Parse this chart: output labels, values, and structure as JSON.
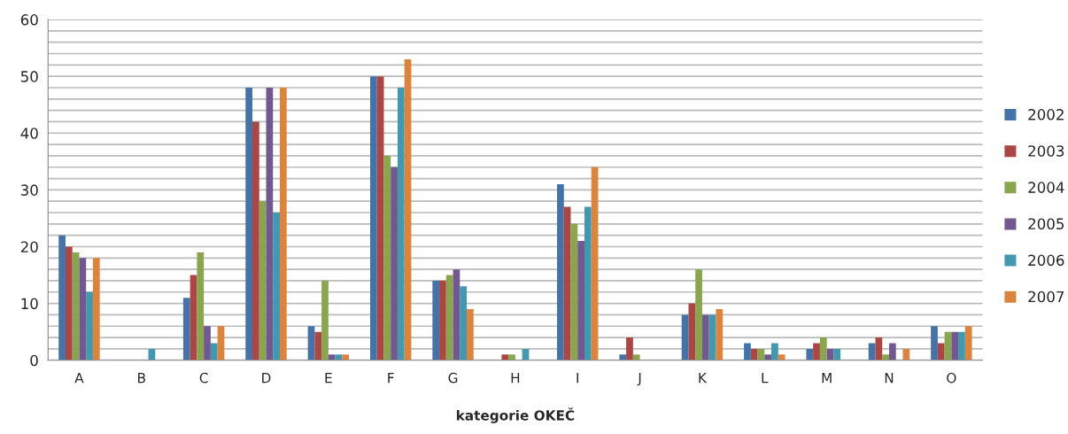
{
  "chart_data": {
    "type": "bar",
    "xlabel": "kategorie OKEČ",
    "categories": [
      "A",
      "B",
      "C",
      "D",
      "E",
      "F",
      "G",
      "H",
      "I",
      "J",
      "K",
      "L",
      "M",
      "N",
      "O"
    ],
    "series": [
      {
        "name": "2002",
        "color": "#4572a7",
        "values": [
          22,
          0,
          11,
          48,
          6,
          50,
          14,
          0,
          31,
          1,
          8,
          3,
          2,
          3,
          6
        ]
      },
      {
        "name": "2003",
        "color": "#aa4643",
        "values": [
          20,
          0,
          15,
          42,
          5,
          50,
          14,
          1,
          27,
          4,
          10,
          2,
          3,
          4,
          3
        ]
      },
      {
        "name": "2004",
        "color": "#89a54e",
        "values": [
          19,
          0,
          19,
          28,
          14,
          36,
          15,
          1,
          24,
          1,
          16,
          2,
          4,
          1,
          5
        ]
      },
      {
        "name": "2005",
        "color": "#71588f",
        "values": [
          18,
          0,
          6,
          48,
          1,
          34,
          16,
          0,
          21,
          0,
          8,
          1,
          2,
          3,
          5
        ]
      },
      {
        "name": "2006",
        "color": "#4198af",
        "values": [
          12,
          2,
          3,
          26,
          1,
          48,
          13,
          2,
          27,
          0,
          8,
          3,
          2,
          0,
          5
        ]
      },
      {
        "name": "2007",
        "color": "#db843d",
        "values": [
          18,
          0,
          6,
          48,
          1,
          53,
          9,
          0,
          34,
          0,
          9,
          1,
          0,
          2,
          6
        ]
      }
    ],
    "ylim": [
      0,
      60
    ],
    "yticks": [
      0,
      {
        "value": 2,
        "label": null
      },
      {
        "value": 4,
        "label": null
      },
      {
        "value": 6,
        "label": null
      },
      {
        "value": 8,
        "label": null
      },
      10,
      {
        "value": 12,
        "label": null
      },
      {
        "value": 14,
        "label": null
      },
      {
        "value": 16,
        "label": null
      },
      {
        "value": 18,
        "label": null
      },
      20,
      {
        "value": 22,
        "label": null
      },
      {
        "value": 24,
        "label": null
      },
      {
        "value": 26,
        "label": null
      },
      {
        "value": 28,
        "label": null
      },
      30,
      {
        "value": 32,
        "label": null
      },
      {
        "value": 34,
        "label": null
      },
      {
        "value": 36,
        "label": null
      },
      {
        "value": 38,
        "label": null
      },
      40,
      {
        "value": 42,
        "label": null
      },
      {
        "value": 44,
        "label": null
      },
      {
        "value": 46,
        "label": null
      },
      {
        "value": 48,
        "label": null
      },
      50,
      {
        "value": 52,
        "label": null
      },
      {
        "value": 54,
        "label": null
      },
      {
        "value": 56,
        "label": null
      },
      {
        "value": 58,
        "label": null
      },
      60
    ],
    "grid": "y",
    "legend": "right"
  }
}
